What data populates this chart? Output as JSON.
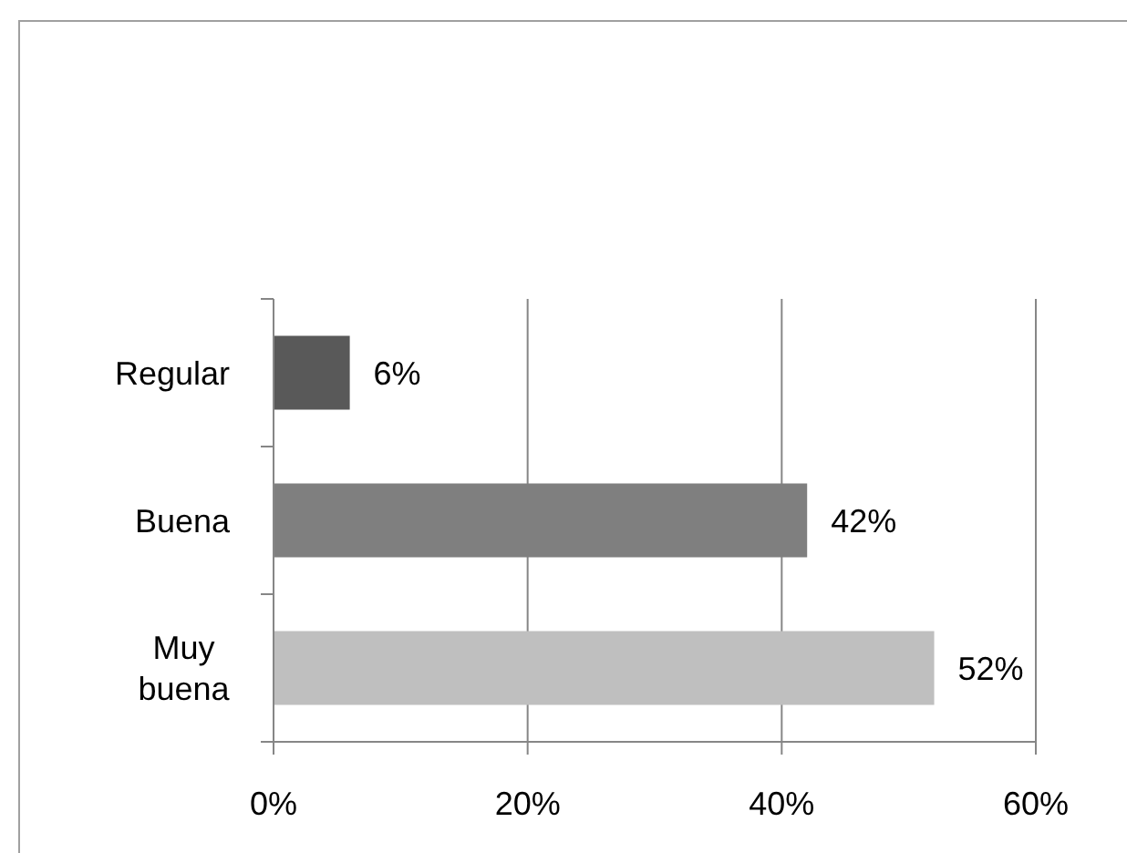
{
  "chart_data": {
    "type": "bar",
    "orientation": "horizontal",
    "categories": [
      "Regular",
      "Buena",
      "Muy buena"
    ],
    "values": [
      6,
      42,
      52
    ],
    "colors": [
      "#595959",
      "#7f7f7f",
      "#bfbfbf"
    ],
    "value_labels": [
      "6%",
      "42%",
      "52%"
    ],
    "xlim": [
      0,
      60
    ],
    "xticks": [
      {
        "value": 0,
        "label": "0%"
      },
      {
        "value": 20,
        "label": "20%"
      },
      {
        "value": 40,
        "label": "40%"
      },
      {
        "value": 60,
        "label": "60%"
      }
    ],
    "grid": "x"
  }
}
